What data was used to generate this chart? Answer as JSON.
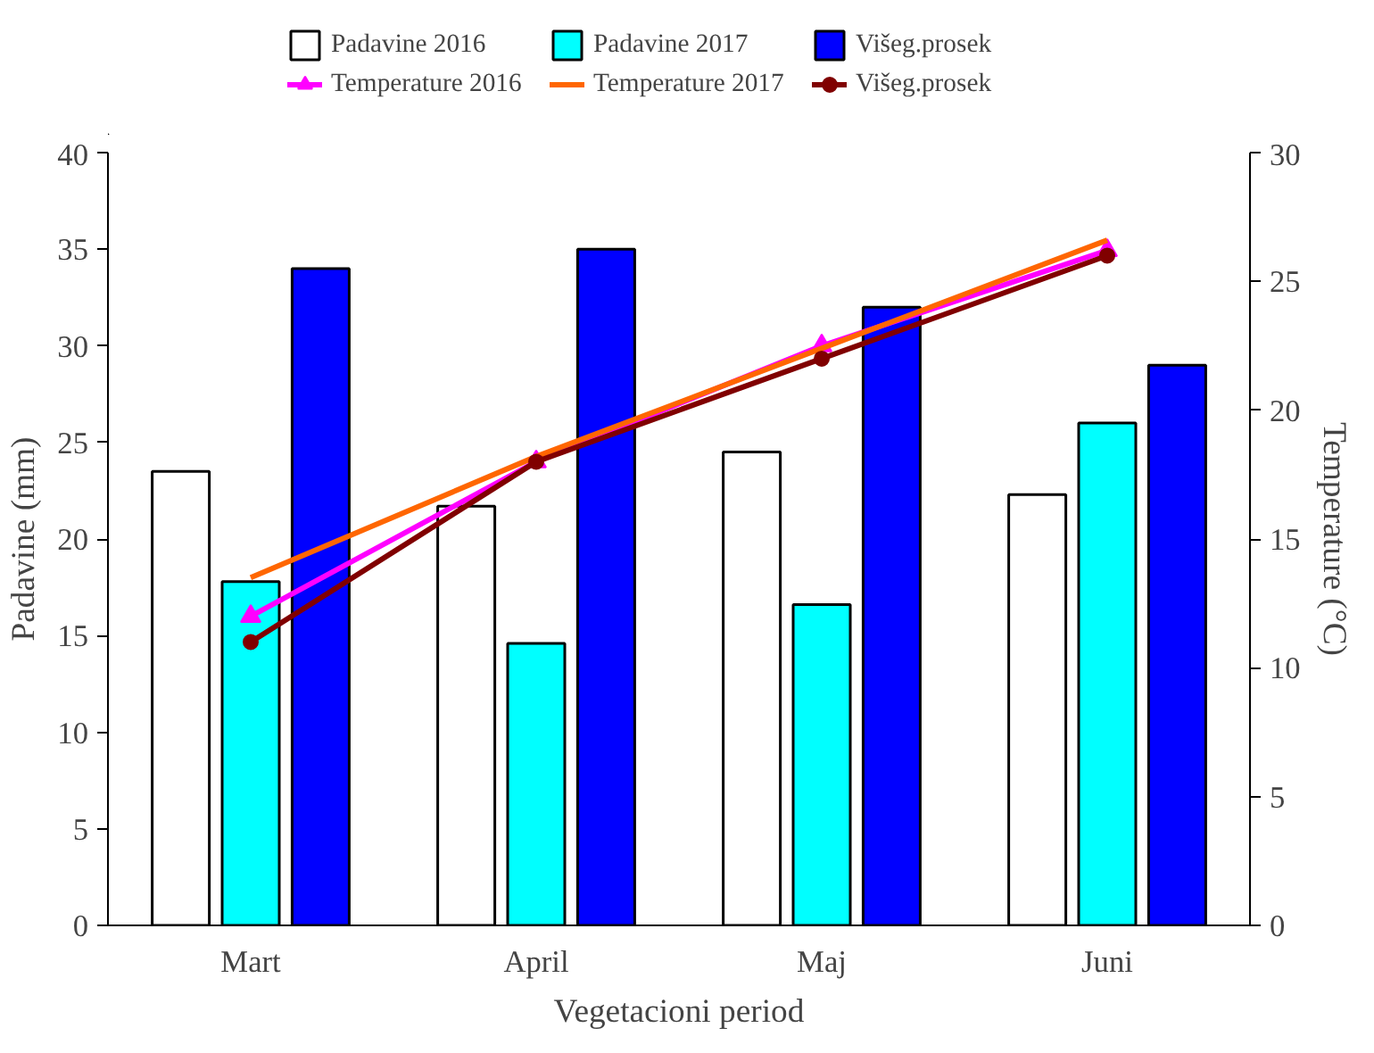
{
  "chart_data": {
    "type": "bar",
    "xlabel": "Vegetacioni period",
    "ylabel": "Padavine (mm)",
    "y2label": "Temperature (°C)",
    "categories": [
      "Mart",
      "April",
      "Maj",
      "Juni"
    ],
    "series": [
      {
        "name": "Padavine 2016",
        "color": "#ffffff",
        "values": [
          23.5,
          21.7,
          24.5,
          22.3
        ]
      },
      {
        "name": "Padavine 2017",
        "color": "#00ffff",
        "values": [
          17.8,
          14.6,
          16.6,
          26.0
        ]
      },
      {
        "name": "Višeg.prosek",
        "color": "#0000ff",
        "values": [
          34.0,
          35.0,
          32.0,
          29.0
        ]
      },
      {
        "name": "Temperature 2016",
        "type": "line",
        "axis": "y2",
        "marker": "triangle",
        "color": "#ff00ff",
        "values": [
          12.0,
          18.0,
          22.5,
          26.2
        ]
      },
      {
        "name": "Temperature 2017",
        "type": "line",
        "axis": "y2",
        "marker": "none",
        "color": "#ff6600",
        "values": [
          13.5,
          18.2,
          22.4,
          26.6
        ]
      },
      {
        "name": "Višeg.prosek",
        "type": "line",
        "axis": "y2",
        "marker": "circle",
        "color": "#800000",
        "values": [
          11.0,
          18.0,
          22.0,
          26.0
        ]
      }
    ],
    "ylim": [
      0,
      40
    ],
    "yticks": [
      0,
      5,
      10,
      15,
      20,
      25,
      30,
      35,
      40
    ],
    "y2lim": [
      0,
      30
    ],
    "y2ticks": [
      0,
      5,
      10,
      15,
      20,
      25,
      30
    ],
    "grid": false,
    "legend": "top"
  }
}
